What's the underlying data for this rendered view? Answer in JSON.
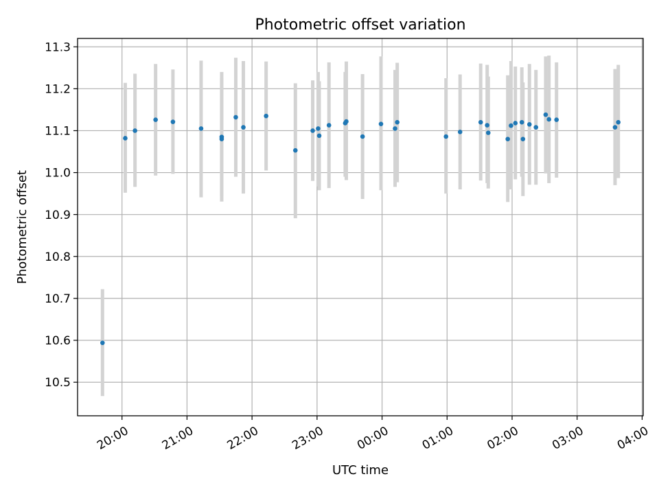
{
  "chart_data": {
    "type": "scatter",
    "title": "Photometric offset variation",
    "xlabel": "UTC time",
    "ylabel": "Photometric offset",
    "grid": true,
    "legend": "none",
    "x_axis": {
      "type": "time",
      "range": [
        "19:19",
        "04:01"
      ],
      "ticks": [
        "20:00",
        "21:00",
        "22:00",
        "23:00",
        "00:00",
        "01:00",
        "02:00",
        "03:00",
        "04:00"
      ]
    },
    "ylim": [
      10.42,
      11.32
    ],
    "yticks": [
      "10.5",
      "10.6",
      "10.7",
      "10.8",
      "10.9",
      "11.0",
      "11.1",
      "11.2",
      "11.3"
    ],
    "colors": {
      "points": "#1f77b4",
      "errorbars": "#d3d3d3"
    },
    "points": [
      {
        "x": "19:42",
        "y": 10.594,
        "ylow": 10.467,
        "yhigh": 10.722
      },
      {
        "x": "20:03",
        "y": 11.082,
        "ylow": 10.952,
        "yhigh": 11.214
      },
      {
        "x": "20:12",
        "y": 11.1,
        "ylow": 10.966,
        "yhigh": 11.236
      },
      {
        "x": "20:31",
        "y": 11.126,
        "ylow": 10.993,
        "yhigh": 11.259
      },
      {
        "x": "20:47",
        "y": 11.121,
        "ylow": 10.997,
        "yhigh": 11.246
      },
      {
        "x": "21:13",
        "y": 11.105,
        "ylow": 10.941,
        "yhigh": 11.267
      },
      {
        "x": "21:32",
        "y": 11.08,
        "ylow": 10.931,
        "yhigh": 11.24
      },
      {
        "x": "21:32",
        "y": 11.085,
        "ylow": 10.945,
        "yhigh": 11.225
      },
      {
        "x": "21:45",
        "y": 11.132,
        "ylow": 10.99,
        "yhigh": 11.274
      },
      {
        "x": "21:52",
        "y": 11.108,
        "ylow": 10.95,
        "yhigh": 11.266
      },
      {
        "x": "22:13",
        "y": 11.135,
        "ylow": 11.005,
        "yhigh": 11.265
      },
      {
        "x": "22:40",
        "y": 11.053,
        "ylow": 10.891,
        "yhigh": 11.213
      },
      {
        "x": "22:56",
        "y": 11.1,
        "ylow": 10.98,
        "yhigh": 11.22
      },
      {
        "x": "23:01",
        "y": 11.105,
        "ylow": 10.967,
        "yhigh": 11.24
      },
      {
        "x": "23:02",
        "y": 11.088,
        "ylow": 10.958,
        "yhigh": 11.218
      },
      {
        "x": "23:11",
        "y": 11.113,
        "ylow": 10.963,
        "yhigh": 11.263
      },
      {
        "x": "23:26",
        "y": 11.118,
        "ylow": 10.99,
        "yhigh": 11.24
      },
      {
        "x": "23:27",
        "y": 11.122,
        "ylow": 10.982,
        "yhigh": 11.265
      },
      {
        "x": "23:42",
        "y": 11.086,
        "ylow": 10.937,
        "yhigh": 11.235
      },
      {
        "x": "23:59",
        "y": 11.116,
        "ylow": 10.958,
        "yhigh": 11.277
      },
      {
        "x": "00:12",
        "y": 11.105,
        "ylow": 10.966,
        "yhigh": 11.245
      },
      {
        "x": "00:14",
        "y": 11.12,
        "ylow": 10.977,
        "yhigh": 11.262
      },
      {
        "x": "00:59",
        "y": 11.086,
        "ylow": 10.95,
        "yhigh": 11.225
      },
      {
        "x": "01:12",
        "y": 11.097,
        "ylow": 10.96,
        "yhigh": 11.234
      },
      {
        "x": "01:31",
        "y": 11.12,
        "ylow": 10.981,
        "yhigh": 11.26
      },
      {
        "x": "01:37",
        "y": 11.113,
        "ylow": 10.975,
        "yhigh": 11.257
      },
      {
        "x": "01:38",
        "y": 11.095,
        "ylow": 10.962,
        "yhigh": 11.229
      },
      {
        "x": "01:56",
        "y": 11.08,
        "ylow": 10.93,
        "yhigh": 11.232
      },
      {
        "x": "01:59",
        "y": 11.112,
        "ylow": 10.96,
        "yhigh": 11.266
      },
      {
        "x": "02:03",
        "y": 11.118,
        "ylow": 10.984,
        "yhigh": 11.253
      },
      {
        "x": "02:09",
        "y": 11.12,
        "ylow": 10.99,
        "yhigh": 11.251
      },
      {
        "x": "02:10",
        "y": 11.08,
        "ylow": 10.944,
        "yhigh": 11.215
      },
      {
        "x": "02:16",
        "y": 11.115,
        "ylow": 10.971,
        "yhigh": 11.259
      },
      {
        "x": "02:22",
        "y": 11.108,
        "ylow": 10.971,
        "yhigh": 11.245
      },
      {
        "x": "02:31",
        "y": 11.138,
        "ylow": 10.998,
        "yhigh": 11.277
      },
      {
        "x": "02:34",
        "y": 11.127,
        "ylow": 10.975,
        "yhigh": 11.279
      },
      {
        "x": "02:41",
        "y": 11.126,
        "ylow": 10.988,
        "yhigh": 11.263
      },
      {
        "x": "03:35",
        "y": 11.108,
        "ylow": 10.97,
        "yhigh": 11.247
      },
      {
        "x": "03:38",
        "y": 11.12,
        "ylow": 10.987,
        "yhigh": 11.257
      }
    ]
  }
}
